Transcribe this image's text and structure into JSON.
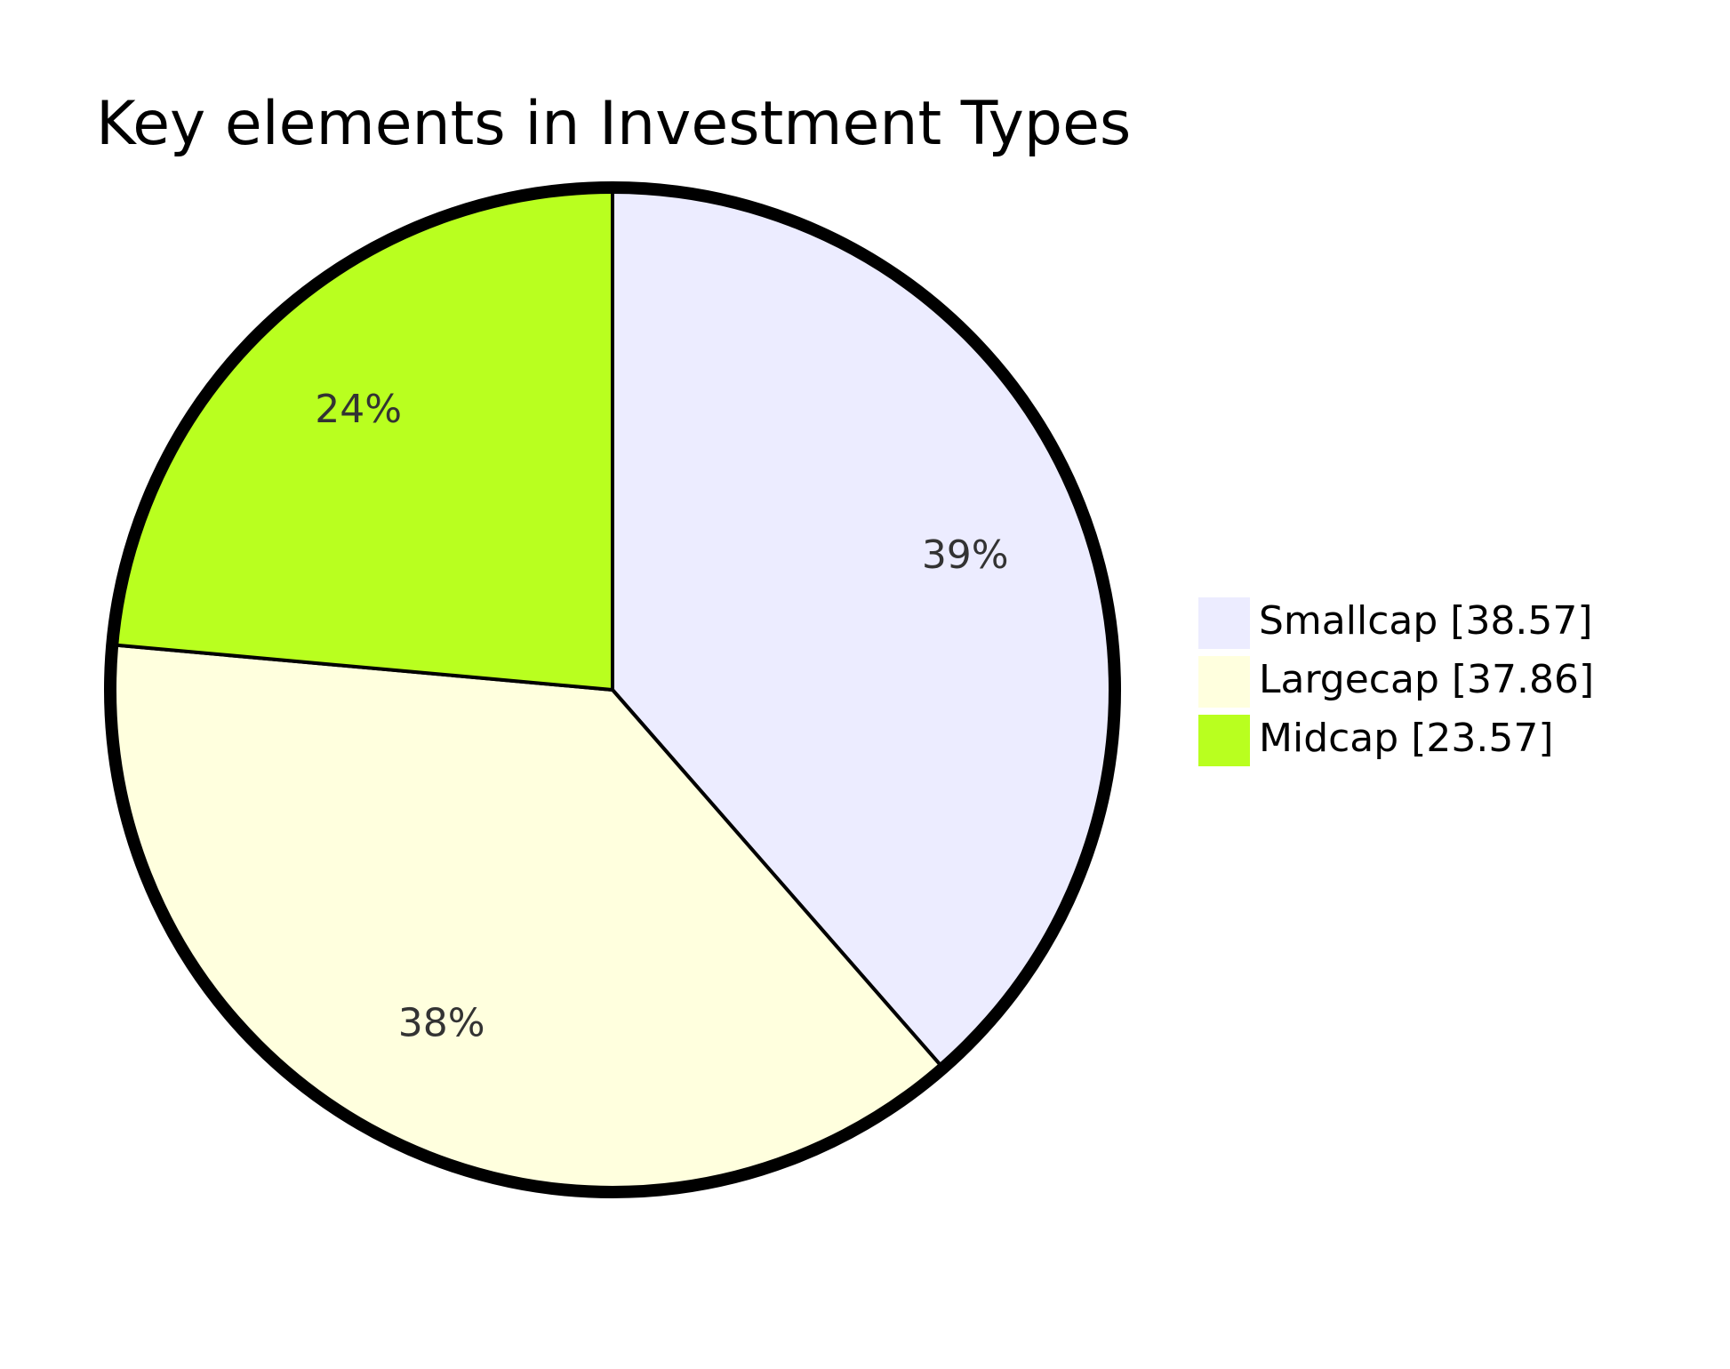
{
  "chart_data": {
    "type": "pie",
    "title": "Key elements in Investment Types",
    "legend_position": "right",
    "start_angle": "12 o'clock",
    "direction": "clockwise",
    "slices": [
      {
        "label": "Smallcap",
        "value": 38.57,
        "percent_label": "39%",
        "legend_label": "Smallcap [38.57]",
        "color": "#ECECFF"
      },
      {
        "label": "Largecap",
        "value": 37.86,
        "percent_label": "38%",
        "legend_label": "Largecap [37.86]",
        "color": "#FFFFDE"
      },
      {
        "label": "Midcap",
        "value": 23.57,
        "percent_label": "24%",
        "legend_label": "Midcap [23.57]",
        "color": "#B9FF1F"
      }
    ]
  }
}
